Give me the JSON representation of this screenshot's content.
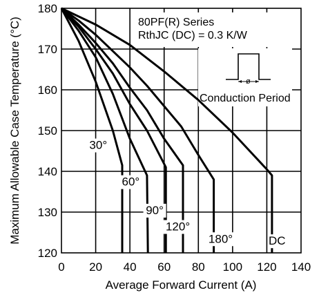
{
  "chart_data": {
    "type": "line",
    "title": "",
    "xlabel": "Average Forward Current (A)",
    "ylabel": "Maximum Allowable Case Temperature (°C)",
    "xlim": [
      0,
      140
    ],
    "ylim": [
      120,
      180
    ],
    "xticks": [
      "0",
      "20",
      "40",
      "60",
      "80",
      "100",
      "120",
      "140"
    ],
    "yticks": [
      "120",
      "130",
      "140",
      "150",
      "160",
      "170",
      "180"
    ],
    "grid": true,
    "annotations": {
      "series_title": "80PF(R) Series",
      "rth": "RthJC  (DC) = 0.3 K/W",
      "conduction_label": "Conduction Period",
      "phi": "ø"
    },
    "series": [
      {
        "name": "30°",
        "x": [
          0,
          10,
          20,
          30,
          35.5,
          35.5
        ],
        "y": [
          180,
          172,
          162,
          150,
          141.5,
          120
        ]
      },
      {
        "name": "60°",
        "x": [
          0,
          10,
          20,
          30,
          40,
          50,
          50.5
        ],
        "y": [
          180,
          174.5,
          168,
          159,
          148,
          139,
          120
        ]
      },
      {
        "name": "90°",
        "x": [
          0,
          10,
          20,
          30,
          40,
          50,
          61,
          61
        ],
        "y": [
          180,
          175.5,
          170,
          164,
          156.5,
          150,
          141,
          120
        ]
      },
      {
        "name": "120°",
        "x": [
          0,
          10,
          20,
          30,
          40,
          50,
          60,
          71,
          71
        ],
        "y": [
          180,
          176,
          171.5,
          166.5,
          160.5,
          155,
          148,
          141.5,
          120
        ]
      },
      {
        "name": "180°",
        "x": [
          0,
          10,
          20,
          30,
          40,
          50,
          60,
          70,
          80,
          89,
          89
        ],
        "y": [
          180,
          177,
          173.5,
          169.5,
          165.5,
          161,
          156,
          151,
          144,
          138,
          120
        ]
      },
      {
        "name": "DC",
        "x": [
          0,
          20,
          40,
          60,
          80,
          100,
          110,
          120,
          123,
          123
        ],
        "y": [
          180,
          176,
          171,
          164.5,
          157.5,
          149.5,
          145,
          140.5,
          139,
          120
        ]
      }
    ],
    "label_positions": [
      {
        "name": "30°",
        "x": 21.5,
        "y": 145.5
      },
      {
        "name": "60°",
        "x": 40.5,
        "y": 136.5
      },
      {
        "name": "90°",
        "x": 54.5,
        "y": 129.5
      },
      {
        "name": "120°",
        "x": 68,
        "y": 125.5
      },
      {
        "name": "180°",
        "x": 93,
        "y": 122.5
      },
      {
        "name": "DC",
        "x": 126,
        "y": 122
      }
    ]
  }
}
